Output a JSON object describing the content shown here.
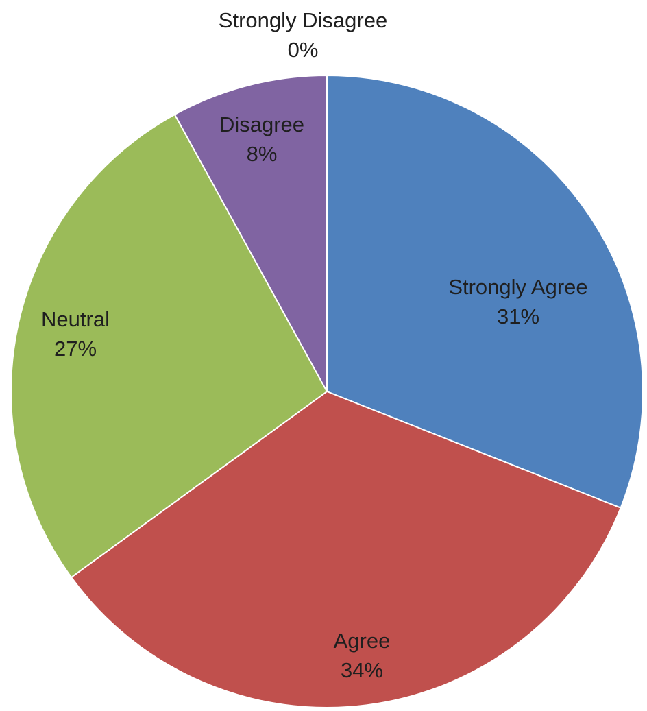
{
  "chart_data": {
    "type": "pie",
    "start_angle_deg": 0,
    "direction": "clockwise",
    "legend": "none",
    "slices": [
      {
        "label": "Strongly Agree",
        "value": 31,
        "value_label": "31%",
        "color": "#4F81BD"
      },
      {
        "label": "Agree",
        "value": 34,
        "value_label": "34%",
        "color": "#C0504D"
      },
      {
        "label": "Neutral",
        "value": 27,
        "value_label": "27%",
        "color": "#9BBB59"
      },
      {
        "label": "Disagree",
        "value": 8,
        "value_label": "8%",
        "color": "#8064A2"
      },
      {
        "label": "Strongly Disagree",
        "value": 0,
        "value_label": "0%",
        "color": "#4BACC6"
      }
    ]
  }
}
